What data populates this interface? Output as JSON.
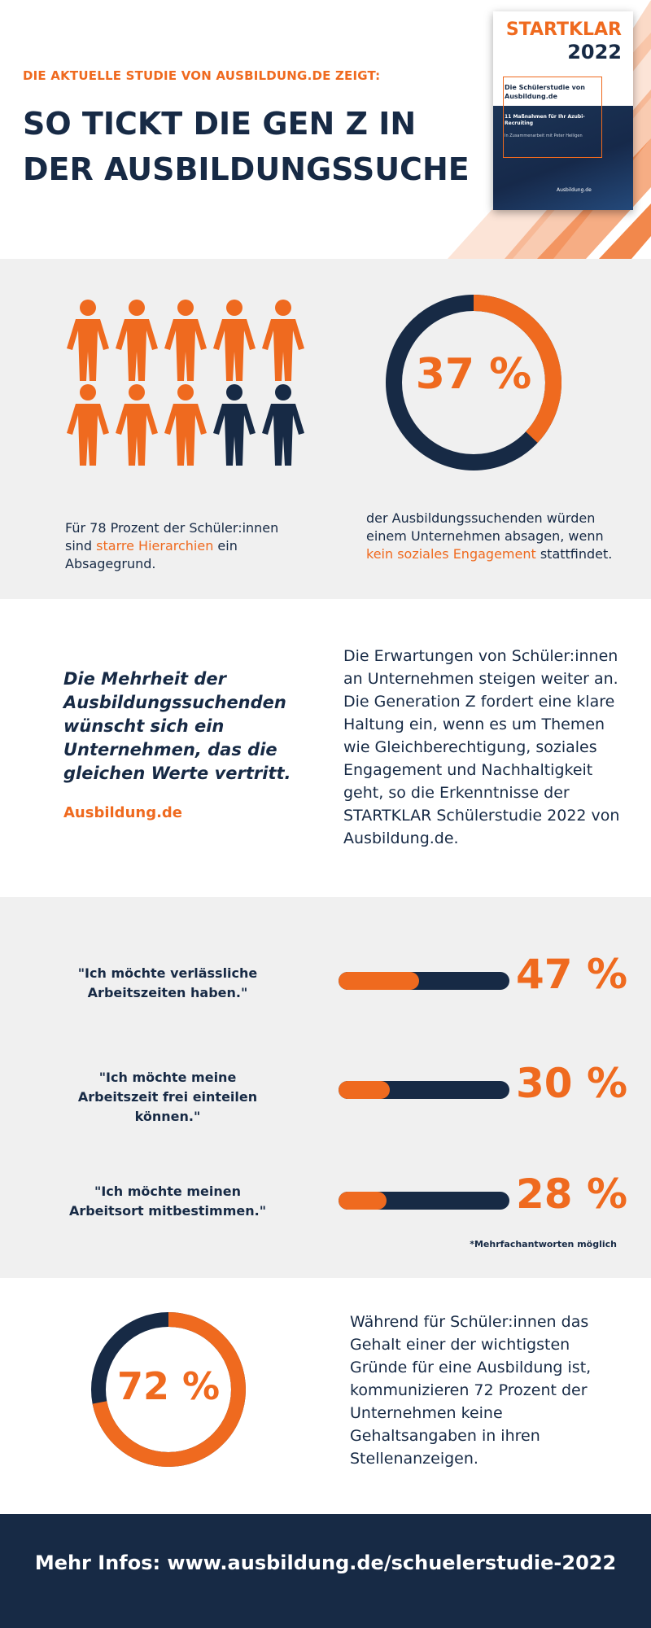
{
  "colors": {
    "accent": "#ef6a1f",
    "navy": "#172a45",
    "light_bg": "#f0f0f0"
  },
  "header": {
    "kicker": "DIE AKTUELLE STUDIE VON AUSBILDUNG.DE ZEIGT:",
    "headline": "SO TICKT DIE GEN Z IN DER AUSBILDUNGSSUCHE"
  },
  "cover": {
    "title": "STARTKLAR",
    "year": "2022",
    "subtitle": "Die Schülerstudie von Ausbildung.de",
    "line1": "11 Maßnahmen für Ihr Azubi-Recruiting",
    "line2": "In Zusammenarbeit mit Peter Heiligen",
    "logo_text": "Ausbildung.de"
  },
  "people_stat": {
    "icons_total": 10,
    "icons_highlighted": 8,
    "text_before": "Für 78 Prozent der Schüler:innen sind ",
    "text_highlight": "starre Hierarchien",
    "text_after": " ein Absagegrund."
  },
  "donut_37": {
    "value": 37,
    "label": "37 %",
    "text_before": "der Ausbildungssuchenden würden einem Unternehmen absagen, wenn ",
    "text_highlight": "kein soziales Engagement",
    "text_after": " stattfindet."
  },
  "quote": {
    "text": "Die Mehrheit der Ausbildungssuchenden wünscht sich ein Unternehmen, das die gleichen Werte vertritt.",
    "source": "Ausbildung.de",
    "body": "Die Erwartungen von Schüler:innen an Unternehmen steigen weiter an. Die Generation Z fordert eine klare Haltung ein, wenn es um Themen wie Gleichberechtigung, soziales Engagement und Nachhaltigkeit geht, so die Erkenntnisse der STARTKLAR Schülerstudie 2022 von Ausbildung.de."
  },
  "bars": [
    {
      "label": "\"Ich möchte verlässliche Arbeitszeiten haben.\"",
      "value": 47,
      "display": "47 %"
    },
    {
      "label": "\"Ich möchte meine Arbeitszeit frei einteilen können.\"",
      "value": 30,
      "display": "30 %"
    },
    {
      "label": "\"Ich möchte meinen Arbeitsort mitbestimmen.\"",
      "value": 28,
      "display": "28 %"
    }
  ],
  "footnote": "*Mehrfachantworten möglich",
  "donut_72": {
    "value": 72,
    "label": "72 %",
    "body": "Während für Schüler:innen das Gehalt einer der wichtigsten Gründe für eine Ausbildung ist, kommunizieren 72 Prozent der Unternehmen keine Gehaltsangaben in ihren Stellenanzeigen."
  },
  "footer": {
    "text": "Mehr Infos: www.ausbildung.de/schuelerstudie-2022"
  }
}
